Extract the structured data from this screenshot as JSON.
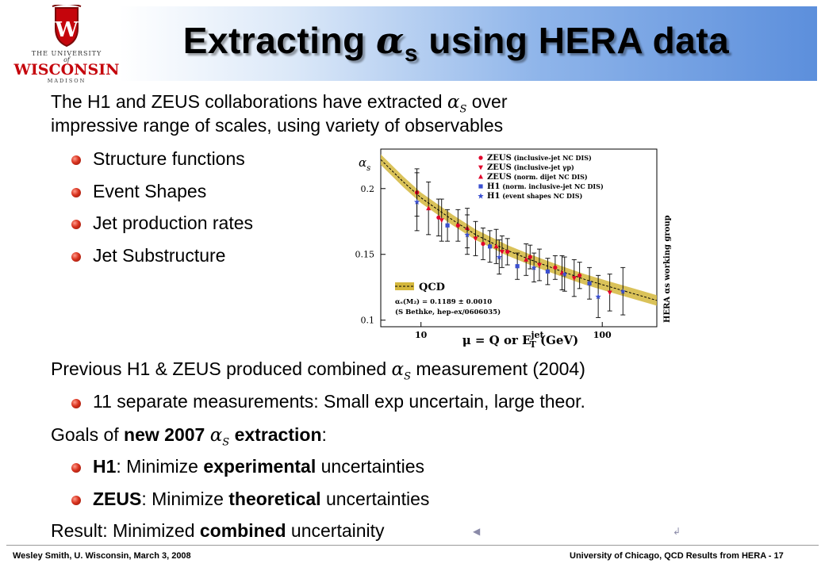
{
  "slide": {
    "title_pre": "Extracting ",
    "title_alpha": "α",
    "title_sub": "s",
    "title_post": " using HERA data"
  },
  "logo": {
    "line1": "THE UNIVERSITY",
    "line2": "of",
    "line3": "WISCONSIN",
    "line4": "MADISON",
    "shield_letter": "W"
  },
  "intro": {
    "line1_pre": "The H1 and ZEUS collaborations have extracted ",
    "line1_post": " over",
    "line2": "impressive range of scales, using variety of observables"
  },
  "alpha": {
    "sym": "α",
    "sub": "S"
  },
  "observables": [
    "Structure functions",
    "Event Shapes",
    "Jet production rates",
    "Jet Substructure"
  ],
  "previous": {
    "pre": "Previous H1 & ZEUS produced combined ",
    "post": " measurement (2004)",
    "bullet": "11 separate measurements: Small exp uncertain, large theor."
  },
  "goals": {
    "pre": "Goals of ",
    "bold": "new 2007 ",
    "bold2": " extraction",
    "post": ":",
    "h1_bold": "H1",
    "h1_mid": ": Minimize ",
    "h1_bold2": "experimental",
    "h1_post": " uncertainties",
    "zeus_bold": "ZEUS",
    "zeus_mid": ": Minimize ",
    "zeus_bold2": "theoretical",
    "zeus_post": " uncertainties"
  },
  "result": {
    "pre": "Result: Minimized ",
    "bold": "combined",
    "post": " uncertainity"
  },
  "footer": {
    "left": "Wesley Smith, U. Wisconsin, March 3, 2008",
    "right": "University of Chicago, QCD Results from HERA -  17"
  },
  "colors": {
    "bullet": "#d8321e",
    "qcd_band": "#d4b73c",
    "zeus": "#e0002a",
    "h1": "#3a4fd0"
  },
  "chart_data": {
    "type": "scatter",
    "xscale": "log",
    "xlim": [
      6,
      200
    ],
    "ylim": [
      0.095,
      0.23
    ],
    "ylabel_sym": "α",
    "ylabel_sub": "s",
    "xlabel": "μ = Q or E",
    "xlabel_sup": "jet",
    "xlabel_sub": "T",
    "xlabel_post": " (GeV)",
    "xticks": [
      {
        "v": 10,
        "label": "10"
      },
      {
        "v": 100,
        "label": "100"
      }
    ],
    "yticks": [
      {
        "v": 0.1,
        "label": "0.1"
      },
      {
        "v": 0.15,
        "label": "0.15"
      },
      {
        "v": 0.2,
        "label": "0.2"
      }
    ],
    "legend": [
      {
        "exp": "ZEUS",
        "desc": " (inclusive-jet NC DIS)",
        "marker": "dot",
        "color": "#e0002a"
      },
      {
        "exp": "ZEUS",
        "desc": " (inclusive-jet γp)",
        "marker": "tri-down",
        "color": "#e0002a"
      },
      {
        "exp": "ZEUS",
        "desc": " (norm. dijet NC DIS)",
        "marker": "tri-up",
        "color": "#e0002a"
      },
      {
        "exp": "H1",
        "desc": " (norm. inclusive-jet NC DIS)",
        "marker": "square",
        "color": "#3a4fd0"
      },
      {
        "exp": "H1",
        "desc": " (event shapes NC DIS)",
        "marker": "star",
        "color": "#3a4fd0"
      }
    ],
    "qcd": {
      "label": "QCD",
      "line1": "αₛ(M₂) = 0.1189 ± 0.0010",
      "line2": "(S Bethke, hep-ex/0606035)",
      "band": [
        [
          6,
          0.222
        ],
        [
          8,
          0.205
        ],
        [
          10,
          0.193
        ],
        [
          15,
          0.176
        ],
        [
          20,
          0.165
        ],
        [
          30,
          0.153
        ],
        [
          40,
          0.146
        ],
        [
          60,
          0.137
        ],
        [
          80,
          0.131
        ],
        [
          100,
          0.127
        ],
        [
          150,
          0.12
        ],
        [
          200,
          0.115
        ]
      ],
      "halfwidth": 0.004
    },
    "side_label": "HERA αs working group",
    "series": [
      {
        "marker": "dot",
        "color": "#e0002a",
        "points": [
          [
            9.5,
            0.197,
            0.018
          ],
          [
            12.5,
            0.178,
            0.014
          ],
          [
            16,
            0.172,
            0.012
          ],
          [
            22,
            0.158,
            0.012
          ],
          [
            30,
            0.152,
            0.01
          ],
          [
            40,
            0.148,
            0.009
          ],
          [
            55,
            0.14,
            0.009
          ],
          [
            75,
            0.134,
            0.01
          ]
        ]
      },
      {
        "marker": "tri-down",
        "color": "#e0002a",
        "points": [
          [
            13,
            0.176,
            0.016
          ],
          [
            20,
            0.162,
            0.013
          ],
          [
            28,
            0.152,
            0.012
          ],
          [
            45,
            0.142,
            0.012
          ],
          [
            70,
            0.132,
            0.014
          ],
          [
            110,
            0.121,
            0.014
          ]
        ]
      },
      {
        "marker": "tri-up",
        "color": "#e0002a",
        "points": [
          [
            11,
            0.185,
            0.02
          ],
          [
            18,
            0.17,
            0.015
          ],
          [
            26,
            0.156,
            0.013
          ],
          [
            38,
            0.146,
            0.012
          ],
          [
            60,
            0.136,
            0.013
          ]
        ]
      },
      {
        "marker": "square",
        "color": "#3a4fd0",
        "points": [
          [
            14,
            0.172,
            0.012
          ],
          [
            24,
            0.156,
            0.012
          ],
          [
            34,
            0.141,
            0.01
          ],
          [
            50,
            0.137,
            0.01
          ],
          [
            85,
            0.128,
            0.012
          ]
        ]
      },
      {
        "marker": "star",
        "color": "#3a4fd0",
        "points": [
          [
            9.5,
            0.19,
            0.022
          ],
          [
            18,
            0.165,
            0.015
          ],
          [
            27,
            0.148,
            0.013
          ],
          [
            42,
            0.14,
            0.011
          ],
          [
            62,
            0.135,
            0.013
          ],
          [
            95,
            0.118,
            0.016
          ],
          [
            130,
            0.122,
            0.018
          ]
        ]
      }
    ]
  }
}
